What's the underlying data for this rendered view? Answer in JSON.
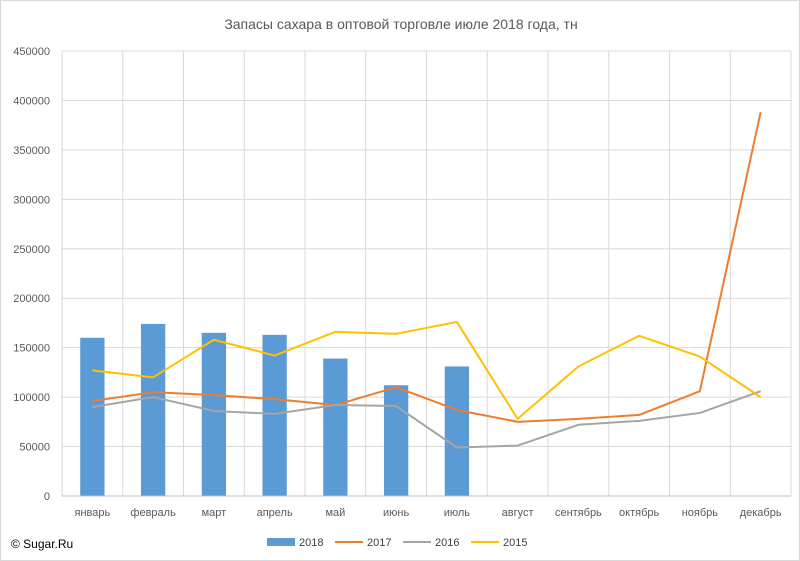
{
  "chart_data": {
    "type": "bar",
    "title": "Запасы сахара в оптовой торговле июле 2018 года, тн",
    "xlabel": "",
    "ylabel": "",
    "categories": [
      "январь",
      "февраль",
      "март",
      "апрель",
      "май",
      "июнь",
      "июль",
      "август",
      "сентябрь",
      "октябрь",
      "ноябрь",
      "декабрь"
    ],
    "ylim": [
      0,
      450000
    ],
    "yticks": [
      0,
      50000,
      100000,
      150000,
      200000,
      250000,
      300000,
      350000,
      400000,
      450000
    ],
    "ytick_labels": [
      "0",
      "50000",
      "100000",
      "150000",
      "200000",
      "250000",
      "300000",
      "350000",
      "400000",
      "450000"
    ],
    "grid": true,
    "legend_position": "bottom",
    "series": [
      {
        "name": "2018",
        "type": "bar",
        "color": "#5b9bd5",
        "values": [
          160000,
          174000,
          165000,
          163000,
          139000,
          112000,
          131000,
          null,
          null,
          null,
          null,
          null
        ]
      },
      {
        "name": "2017",
        "type": "line",
        "color": "#ed7d31",
        "values": [
          96000,
          105000,
          102000,
          98000,
          92000,
          110000,
          87000,
          75000,
          78000,
          82000,
          106000,
          388000
        ]
      },
      {
        "name": "2016",
        "type": "line",
        "color": "#a5a5a5",
        "values": [
          90000,
          100000,
          86000,
          83000,
          92000,
          91000,
          49000,
          51000,
          72000,
          76000,
          84000,
          106000
        ]
      },
      {
        "name": "2015",
        "type": "line",
        "color": "#ffc000",
        "values": [
          127000,
          120000,
          158000,
          142000,
          166000,
          164000,
          176000,
          78000,
          131000,
          162000,
          141000,
          100000
        ]
      }
    ]
  },
  "copyright": "© Sugar.Ru"
}
